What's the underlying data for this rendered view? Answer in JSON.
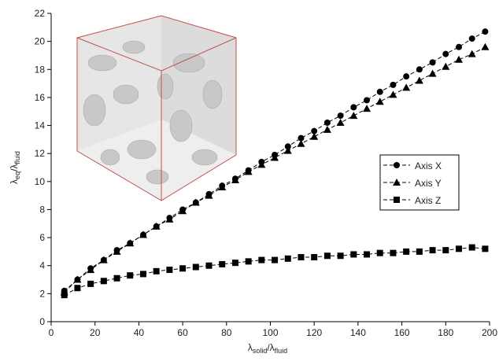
{
  "chart_data": {
    "type": "line",
    "x_label": [
      "λ",
      "solid",
      "/λ",
      "fluid"
    ],
    "y_label": [
      "λ",
      "eq",
      "/λ",
      "fluid"
    ],
    "x": [
      6,
      12,
      18,
      24,
      30,
      36,
      42,
      48,
      54,
      60,
      66,
      72,
      78,
      84,
      90,
      96,
      102,
      108,
      114,
      120,
      126,
      132,
      138,
      144,
      150,
      156,
      162,
      168,
      174,
      180,
      186,
      192,
      198
    ],
    "series": [
      {
        "name": "Axis X",
        "color": "#000000",
        "marker": "circle",
        "values": [
          2.2,
          3.0,
          3.8,
          4.4,
          5.1,
          5.6,
          6.2,
          6.8,
          7.4,
          8.0,
          8.5,
          9.1,
          9.7,
          10.2,
          10.8,
          11.4,
          11.9,
          12.5,
          13.1,
          13.6,
          14.2,
          14.7,
          15.3,
          15.8,
          16.4,
          16.9,
          17.5,
          18.0,
          18.5,
          19.1,
          19.6,
          20.2,
          20.7
        ]
      },
      {
        "name": "Axis Y",
        "color": "#000000",
        "marker": "triangle",
        "values": [
          2.1,
          3.0,
          3.7,
          4.4,
          5.0,
          5.6,
          6.2,
          6.8,
          7.3,
          7.9,
          8.5,
          9.0,
          9.6,
          10.1,
          10.7,
          11.2,
          11.7,
          12.2,
          12.7,
          13.2,
          13.7,
          14.2,
          14.7,
          15.2,
          15.7,
          16.2,
          16.7,
          17.2,
          17.7,
          18.2,
          18.7,
          19.1,
          19.6
        ]
      },
      {
        "name": "Axis Z",
        "color": "#000000",
        "marker": "square",
        "values": [
          1.9,
          2.4,
          2.7,
          2.9,
          3.1,
          3.3,
          3.4,
          3.6,
          3.7,
          3.8,
          3.9,
          4.0,
          4.1,
          4.2,
          4.3,
          4.4,
          4.4,
          4.5,
          4.6,
          4.6,
          4.7,
          4.7,
          4.8,
          4.8,
          4.9,
          4.9,
          5.0,
          5.0,
          5.1,
          5.1,
          5.2,
          5.3,
          5.2
        ]
      }
    ],
    "xlim": [
      0,
      200
    ],
    "xticks": [
      0,
      20,
      40,
      60,
      80,
      100,
      120,
      140,
      160,
      180,
      200
    ],
    "ylim": [
      0,
      22
    ],
    "yticks": [
      0,
      2,
      4,
      6,
      8,
      10,
      12,
      14,
      16,
      18,
      20,
      22
    ],
    "grid": false,
    "legend": "right"
  }
}
